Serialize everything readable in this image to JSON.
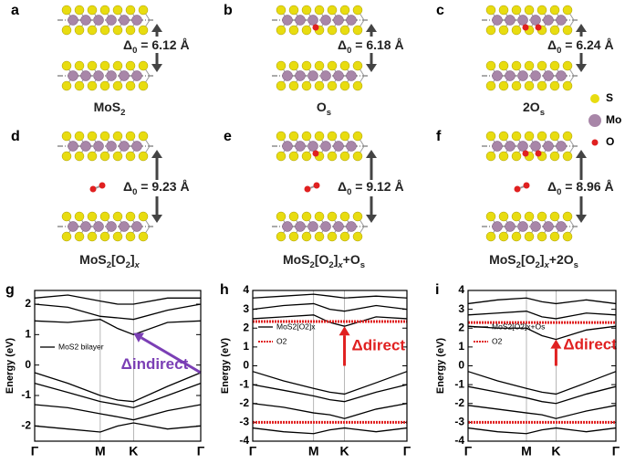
{
  "structures": [
    {
      "letter": "a",
      "delta": [
        {
          "t": "Δ"
        },
        {
          "t": "0",
          "s": "sub"
        },
        {
          "t": " = 6.12 Å"
        }
      ],
      "caption": [
        {
          "t": "MoS"
        },
        {
          "t": "2",
          "s": "sub"
        }
      ],
      "o2": false,
      "os": 0
    },
    {
      "letter": "b",
      "delta": [
        {
          "t": "Δ"
        },
        {
          "t": "0",
          "s": "sub"
        },
        {
          "t": " = 6.18 Å"
        }
      ],
      "caption": [
        {
          "t": "O"
        },
        {
          "t": "s",
          "s": "sub"
        }
      ],
      "o2": false,
      "os": 1
    },
    {
      "letter": "c",
      "delta": [
        {
          "t": "Δ"
        },
        {
          "t": "0",
          "s": "sub"
        },
        {
          "t": " = 6.24 Å"
        }
      ],
      "caption": [
        {
          "t": "2O"
        },
        {
          "t": "s",
          "s": "sub"
        }
      ],
      "o2": false,
      "os": 2
    },
    {
      "letter": "d",
      "delta": [
        {
          "t": "Δ"
        },
        {
          "t": "0",
          "s": "sub"
        },
        {
          "t": " = 9.23 Å"
        }
      ],
      "caption": [
        {
          "t": "MoS"
        },
        {
          "t": "2",
          "s": "sub"
        },
        {
          "t": "[O"
        },
        {
          "t": "2",
          "s": "sub"
        },
        {
          "t": "]"
        },
        {
          "t": "x",
          "s": "subit"
        }
      ],
      "o2": true,
      "os": 0
    },
    {
      "letter": "e",
      "delta": [
        {
          "t": "Δ"
        },
        {
          "t": "0",
          "s": "sub"
        },
        {
          "t": " = 9.12 Å"
        }
      ],
      "caption": [
        {
          "t": "MoS"
        },
        {
          "t": "2",
          "s": "sub"
        },
        {
          "t": "[O"
        },
        {
          "t": "2",
          "s": "sub"
        },
        {
          "t": "]"
        },
        {
          "t": "x",
          "s": "subit"
        },
        {
          "t": "+O"
        },
        {
          "t": "s",
          "s": "sub"
        }
      ],
      "o2": true,
      "os": 1
    },
    {
      "letter": "f",
      "delta": [
        {
          "t": "Δ"
        },
        {
          "t": "0",
          "s": "sub"
        },
        {
          "t": " = 8.96 Å"
        }
      ],
      "caption": [
        {
          "t": "MoS"
        },
        {
          "t": "2",
          "s": "sub"
        },
        {
          "t": "[O"
        },
        {
          "t": "2",
          "s": "sub"
        },
        {
          "t": "]"
        },
        {
          "t": "x",
          "s": "subit"
        },
        {
          "t": "+2O"
        },
        {
          "t": "s",
          "s": "sub"
        }
      ],
      "o2": true,
      "os": 2
    }
  ],
  "atom_legend": [
    {
      "label": "S",
      "color": "#e8dc10"
    },
    {
      "label": "Mo",
      "color": "#a886a8"
    },
    {
      "label": "O",
      "color": "#e02020"
    }
  ],
  "chart_data": [
    {
      "type": "line",
      "letter": "g",
      "ylabel": "Energy (eV)",
      "ylim": [
        -2.5,
        2.45
      ],
      "yticks": [
        -2,
        -1,
        0,
        1,
        2
      ],
      "xlim": [
        0,
        1
      ],
      "xticks": [
        {
          "value": 0,
          "label": "Γ"
        },
        {
          "value": 0.395,
          "label": "M"
        },
        {
          "value": 0.595,
          "label": "K"
        },
        {
          "value": 1,
          "label": "Γ"
        }
      ],
      "x": [
        0,
        0.2,
        0.395,
        0.5,
        0.595,
        0.8,
        1
      ],
      "series": [
        {
          "name": "MoS2 bilayer",
          "color": "#000000",
          "values": [
            1.45,
            1.4,
            1.5,
            1.2,
            1.0,
            1.4,
            1.45
          ]
        },
        {
          "name": null,
          "color": "#000000",
          "values": [
            2.0,
            1.9,
            1.6,
            1.55,
            1.5,
            1.8,
            2.0
          ]
        },
        {
          "name": null,
          "color": "#000000",
          "values": [
            2.2,
            2.3,
            2.1,
            2.0,
            2.0,
            2.2,
            2.2
          ]
        },
        {
          "name": null,
          "color": "#000000",
          "values": [
            -0.25,
            -0.6,
            -1.0,
            -1.15,
            -1.2,
            -0.7,
            -0.25
          ]
        },
        {
          "name": null,
          "color": "#000000",
          "values": [
            -0.6,
            -0.9,
            -1.2,
            -1.3,
            -1.4,
            -1.0,
            -0.6
          ]
        },
        {
          "name": null,
          "color": "#000000",
          "values": [
            -1.3,
            -1.4,
            -1.6,
            -1.7,
            -1.8,
            -1.5,
            -1.3
          ]
        },
        {
          "name": null,
          "color": "#000000",
          "values": [
            -2.0,
            -2.1,
            -2.2,
            -2.0,
            -1.9,
            -2.1,
            -2.0
          ]
        }
      ],
      "annotation": {
        "text": "Δindirect",
        "color": "#7b3fb5",
        "from": [
          1,
          -0.25
        ],
        "to": [
          0.595,
          1.05
        ]
      }
    },
    {
      "type": "line",
      "letter": "h",
      "ylabel": "Energy (eV)",
      "ylim": [
        -4,
        4
      ],
      "yticks": [
        -4,
        -3,
        -2,
        -1,
        0,
        1,
        2,
        3,
        4
      ],
      "xlim": [
        0,
        1
      ],
      "xticks": [
        {
          "value": 0,
          "label": "Γ"
        },
        {
          "value": 0.395,
          "label": "M"
        },
        {
          "value": 0.595,
          "label": "K"
        },
        {
          "value": 1,
          "label": "Γ"
        }
      ],
      "x": [
        0,
        0.2,
        0.395,
        0.5,
        0.595,
        0.8,
        1
      ],
      "series": [
        {
          "name": "MoS2[O2]x",
          "color": "#000000",
          "values": [
            2.5,
            2.6,
            2.7,
            2.3,
            2.1,
            2.6,
            2.5
          ]
        },
        {
          "name": null,
          "color": "#000000",
          "values": [
            3.0,
            3.2,
            3.3,
            3.0,
            2.9,
            3.2,
            3.0
          ]
        },
        {
          "name": null,
          "color": "#000000",
          "values": [
            3.6,
            3.7,
            3.8,
            3.7,
            3.6,
            3.7,
            3.6
          ]
        },
        {
          "name": null,
          "color": "#000000",
          "values": [
            -0.3,
            -0.8,
            -1.2,
            -1.4,
            -1.5,
            -0.9,
            -0.3
          ]
        },
        {
          "name": null,
          "color": "#000000",
          "values": [
            -1.0,
            -1.3,
            -1.6,
            -1.8,
            -1.9,
            -1.4,
            -1.0
          ]
        },
        {
          "name": null,
          "color": "#000000",
          "values": [
            -2.0,
            -2.2,
            -2.5,
            -2.6,
            -2.8,
            -2.3,
            -2.0
          ]
        },
        {
          "name": null,
          "color": "#000000",
          "values": [
            -3.3,
            -3.5,
            -3.6,
            -3.4,
            -3.3,
            -3.5,
            -3.3
          ]
        },
        {
          "name": "O2",
          "color": "#e02020",
          "dash": true,
          "values": [
            2.35,
            2.35,
            2.35,
            2.35,
            2.35,
            2.35,
            2.35
          ]
        },
        {
          "name": null,
          "color": "#e02020",
          "dash": true,
          "values": [
            -3.0,
            -3.0,
            -3.0,
            -3.0,
            -3.0,
            -3.0,
            -3.0
          ]
        }
      ],
      "annotation": {
        "text": "Δdirect",
        "color": "#e02020",
        "from": [
          0.595,
          0
        ],
        "to": [
          0.595,
          2.1
        ]
      }
    },
    {
      "type": "line",
      "letter": "i",
      "ylabel": "Energy (eV)",
      "ylim": [
        -4,
        4
      ],
      "yticks": [
        -4,
        -3,
        -2,
        -1,
        0,
        1,
        2,
        3,
        4
      ],
      "xlim": [
        0,
        1
      ],
      "xticks": [
        {
          "value": 0,
          "label": "Γ"
        },
        {
          "value": 0.395,
          "label": "M"
        },
        {
          "value": 0.595,
          "label": "K"
        },
        {
          "value": 1,
          "label": "Γ"
        }
      ],
      "x": [
        0,
        0.2,
        0.395,
        0.5,
        0.595,
        0.8,
        1
      ],
      "series": [
        {
          "name": "MoS2[O2]x+Os",
          "color": "#000000",
          "values": [
            2.1,
            2.0,
            2.0,
            1.6,
            1.4,
            1.9,
            2.1
          ]
        },
        {
          "name": null,
          "color": "#000000",
          "values": [
            2.7,
            2.8,
            2.9,
            2.6,
            2.5,
            2.8,
            2.7
          ]
        },
        {
          "name": null,
          "color": "#000000",
          "values": [
            3.3,
            3.5,
            3.6,
            3.4,
            3.3,
            3.5,
            3.3
          ]
        },
        {
          "name": null,
          "color": "#000000",
          "values": [
            -0.3,
            -0.8,
            -1.2,
            -1.4,
            -1.5,
            -0.9,
            -0.3
          ]
        },
        {
          "name": null,
          "color": "#000000",
          "values": [
            -1.1,
            -1.4,
            -1.7,
            -1.9,
            -2.0,
            -1.5,
            -1.1
          ]
        },
        {
          "name": null,
          "color": "#000000",
          "values": [
            -2.1,
            -2.3,
            -2.5,
            -2.6,
            -2.8,
            -2.4,
            -2.1
          ]
        },
        {
          "name": null,
          "color": "#000000",
          "values": [
            -3.3,
            -3.5,
            -3.6,
            -3.4,
            -3.3,
            -3.5,
            -3.3
          ]
        },
        {
          "name": "O2",
          "color": "#e02020",
          "dash": true,
          "values": [
            2.3,
            2.3,
            2.3,
            2.3,
            2.3,
            2.3,
            2.3
          ]
        },
        {
          "name": null,
          "color": "#e02020",
          "dash": true,
          "values": [
            -3.0,
            -3.0,
            -3.0,
            -3.0,
            -3.0,
            -3.0,
            -3.0
          ]
        }
      ],
      "annotation": {
        "text": "Δdirect",
        "color": "#e02020",
        "from": [
          0.595,
          0
        ],
        "to": [
          0.595,
          1.4
        ]
      }
    }
  ]
}
